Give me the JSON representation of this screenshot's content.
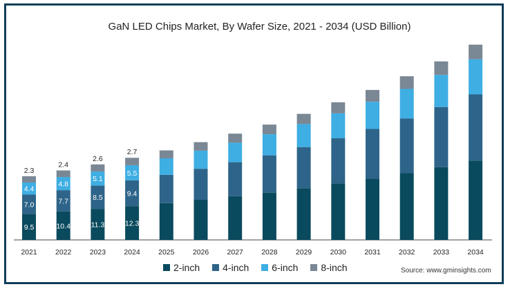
{
  "chart_data": {
    "type": "bar",
    "stacked": true,
    "title": "GaN LED Chips Market, By Wafer Size, 2021 - 2034 (USD Billion)",
    "categories": [
      "2021",
      "2022",
      "2023",
      "2024",
      "2025",
      "2026",
      "2027",
      "2028",
      "2029",
      "2030",
      "2031",
      "2032",
      "2033",
      "2034"
    ],
    "series": [
      {
        "name": "2-inch",
        "color": "#0a4a5e",
        "values": [
          9.5,
          10.4,
          11.3,
          12.3,
          13.4,
          14.6,
          15.9,
          17.2,
          18.8,
          20.5,
          22.3,
          24.3,
          26.5,
          28.9
        ],
        "labels": [
          "9.5",
          "10.4",
          "11.3",
          "12.3",
          "",
          "",
          "",
          "",
          "",
          "",
          "",
          "",
          "",
          ""
        ]
      },
      {
        "name": "4-inch",
        "color": "#2e6489",
        "values": [
          7.0,
          7.7,
          8.5,
          9.4,
          10.3,
          11.3,
          12.4,
          13.6,
          15.0,
          16.5,
          18.1,
          19.9,
          21.9,
          24.1
        ],
        "labels": [
          "7.0",
          "7.7",
          "8.5",
          "9.4",
          "",
          "",
          "",
          "",
          "",
          "",
          "",
          "",
          "",
          ""
        ]
      },
      {
        "name": "6-inch",
        "color": "#3eaee3",
        "values": [
          4.4,
          4.8,
          5.1,
          5.5,
          6.0,
          6.6,
          7.1,
          7.7,
          8.4,
          9.1,
          9.9,
          10.8,
          11.7,
          12.8
        ],
        "labels": [
          "4.4",
          "4.8",
          "5.1",
          "5.5",
          "",
          "",
          "",
          "",
          "",
          "",
          "",
          "",
          "",
          ""
        ]
      },
      {
        "name": "8-inch",
        "color": "#7a8794",
        "values": [
          2.3,
          2.4,
          2.6,
          2.7,
          2.9,
          3.1,
          3.3,
          3.5,
          3.7,
          4.0,
          4.3,
          4.6,
          4.9,
          5.3
        ],
        "labels": [
          "2.3",
          "2.4",
          "2.6",
          "2.7",
          "",
          "",
          "",
          "",
          "",
          "",
          "",
          "",
          "",
          ""
        ]
      }
    ],
    "ylim": [
      0,
      72
    ],
    "grid": false,
    "legend_position": "bottom",
    "source": "Source: www.gminsights.com"
  }
}
